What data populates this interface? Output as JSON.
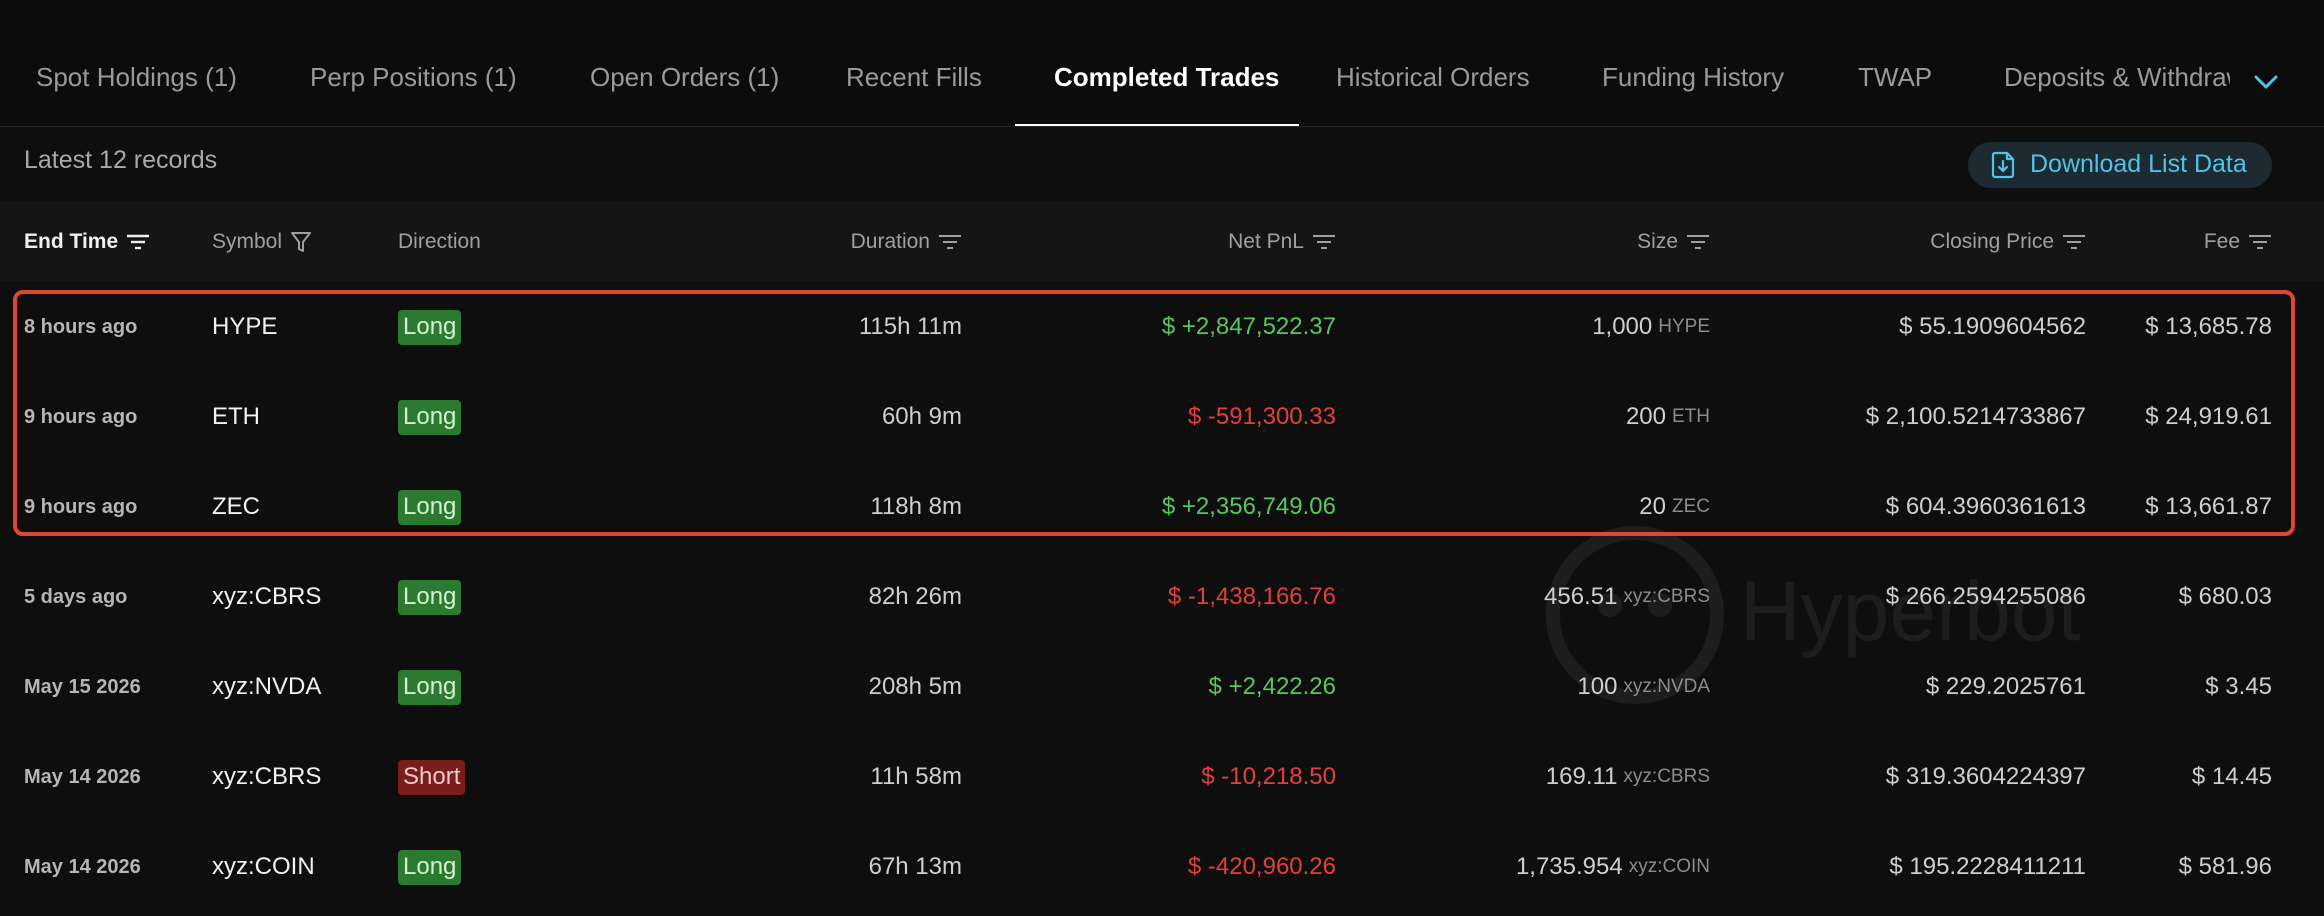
{
  "tabs": [
    {
      "label": "Spot Holdings (1)",
      "active": false
    },
    {
      "label": "Perp Positions (1)",
      "active": false
    },
    {
      "label": "Open Orders (1)",
      "active": false
    },
    {
      "label": "Recent Fills",
      "active": false
    },
    {
      "label": "Completed Trades",
      "active": true
    },
    {
      "label": "Historical Orders",
      "active": false
    },
    {
      "label": "Funding History",
      "active": false
    },
    {
      "label": "TWAP",
      "active": false
    },
    {
      "label": "Deposits & Withdraw",
      "active": false
    }
  ],
  "info": {
    "records_label": "Latest 12 records",
    "download_label": "Download List Data"
  },
  "columns": {
    "end_time": "End Time",
    "symbol": "Symbol",
    "direction": "Direction",
    "duration": "Duration",
    "net_pnl": "Net PnL",
    "size": "Size",
    "closing_price": "Closing Price",
    "fee": "Fee"
  },
  "rows": [
    {
      "time": "8 hours ago",
      "symbol": "HYPE",
      "direction": "Long",
      "duration": "115h 11m",
      "pnl": "$ +2,847,522.37",
      "size": "1,000",
      "size_unit": "HYPE",
      "closing_price": "$ 55.1909604562",
      "fee": "$ 13,685.78"
    },
    {
      "time": "9 hours ago",
      "symbol": "ETH",
      "direction": "Long",
      "duration": "60h 9m",
      "pnl": "$ -591,300.33",
      "size": "200",
      "size_unit": "ETH",
      "closing_price": "$ 2,100.5214733867",
      "fee": "$ 24,919.61"
    },
    {
      "time": "9 hours ago",
      "symbol": "ZEC",
      "direction": "Long",
      "duration": "118h 8m",
      "pnl": "$ +2,356,749.06",
      "size": "20",
      "size_unit": "ZEC",
      "closing_price": "$ 604.3960361613",
      "fee": "$ 13,661.87"
    },
    {
      "time": "5 days ago",
      "symbol": "xyz:CBRS",
      "direction": "Long",
      "duration": "82h 26m",
      "pnl": "$ -1,438,166.76",
      "size": "456.51",
      "size_unit": "xyz:CBRS",
      "closing_price": "$ 266.2594255086",
      "fee": "$ 680.03"
    },
    {
      "time": "May 15 2026",
      "symbol": "xyz:NVDA",
      "direction": "Long",
      "duration": "208h 5m",
      "pnl": "$ +2,422.26",
      "size": "100",
      "size_unit": "xyz:NVDA",
      "closing_price": "$ 229.2025761",
      "fee": "$ 3.45"
    },
    {
      "time": "May 14 2026",
      "symbol": "xyz:CBRS",
      "direction": "Short",
      "duration": "11h 58m",
      "pnl": "$ -10,218.50",
      "size": "169.11",
      "size_unit": "xyz:CBRS",
      "closing_price": "$ 319.3604224397",
      "fee": "$ 14.45"
    },
    {
      "time": "May 14 2026",
      "symbol": "xyz:COIN",
      "direction": "Long",
      "duration": "67h 13m",
      "pnl": "$ -420,960.26",
      "size": "1,735.954",
      "size_unit": "xyz:COIN",
      "closing_price": "$ 195.2228411211",
      "fee": "$ 581.96"
    }
  ],
  "watermark_text": "Hyperbot",
  "colors": {
    "accent": "#52c2e6",
    "positive": "#58c75c",
    "negative": "#e0413c",
    "long_badge": "#2b7a2f",
    "short_badge": "#7a1d1d",
    "highlight": "#e0452f"
  }
}
